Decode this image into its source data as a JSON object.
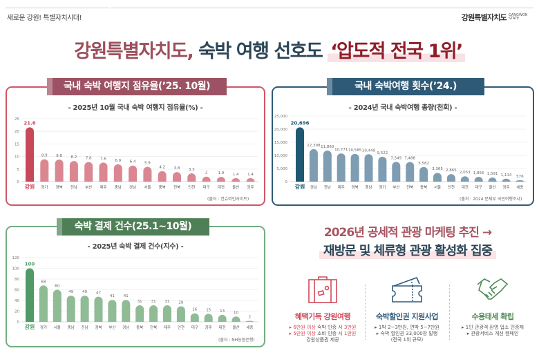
{
  "header": {
    "slogan": "새로운 강원! 특별자치시대!",
    "logo_text": "강원특별자치도",
    "logo_en": "GANGWON STATE"
  },
  "title": {
    "part1": "강원특별자치도,",
    "part2": "숙박 여행 선호도",
    "part3": "‘압도적 전국 1위’"
  },
  "panels": [
    {
      "tab": "국내 숙박 여행지 점유율(’25. 10월)",
      "subtitle": "- 2025년 10월 국내 숙박 여행지 점유율(%) -",
      "source": "(출처 : 컨슈머인사이트)"
    },
    {
      "tab": "국내 숙박여행 횟수(’24.)",
      "subtitle": "- 2024년 국내 숙박여행 총량(천회) -",
      "source": "(출처 : 2024 문체부 국민여행조사)"
    },
    {
      "tab": "숙박 결제 건수(25.1~10월)",
      "subtitle": "- 2025년 숙박 결제 건수(지수) -",
      "source": "(출처 : NH농협은행)"
    }
  ],
  "chart_data": [
    {
      "type": "bar",
      "title": "2025년 10월 국내 숙박 여행지 점유율(%)",
      "categories": [
        "강원",
        "경기",
        "경북",
        "전남",
        "부산",
        "제주",
        "충남",
        "경남",
        "서울",
        "충북",
        "전북",
        "인천",
        "대구",
        "대전",
        "울산",
        "광주"
      ],
      "values": [
        21.6,
        8.9,
        8.8,
        8.2,
        7.8,
        7.6,
        6.9,
        6.4,
        5.9,
        4.2,
        3.8,
        3.3,
        2,
        1.9,
        1.4,
        1.4
      ],
      "value_labels": [
        "21.6",
        "8.9",
        "8.8",
        "8.2",
        "7.8",
        "7.6",
        "6.9",
        "6.4",
        "5.9",
        "4.2",
        "3.8",
        "3.3",
        "2",
        "1.9",
        "1.4",
        "1.4"
      ],
      "ylim": [
        0,
        25
      ],
      "yticks": [
        "0",
        "5",
        "10",
        "15",
        "20",
        "25"
      ],
      "grid": true,
      "colors": {
        "highlight": "#c8485a",
        "bar": "#da8791"
      }
    },
    {
      "type": "bar",
      "title": "2024년 국내 숙박여행 총량(천회)",
      "categories": [
        "강원",
        "경남",
        "전남",
        "제주",
        "경북",
        "충남",
        "경기",
        "부산",
        "전북",
        "충북",
        "서울",
        "인천",
        "대전",
        "대구",
        "울산",
        "광주",
        "세종"
      ],
      "values": [
        20696,
        12398,
        11860,
        10771,
        10585,
        10449,
        9522,
        7549,
        7488,
        5582,
        3365,
        2865,
        2053,
        1856,
        1591,
        1114,
        576
      ],
      "value_labels": [
        "20,696",
        "12,398",
        "11,860",
        "10,771",
        "10,585",
        "10,449",
        "9,522",
        "7,549",
        "7,488",
        "5,582",
        "3,365",
        "2,865",
        "2,053",
        "1,856",
        "1,591",
        "1,114",
        "576"
      ],
      "ylim": [
        0,
        25000
      ],
      "yticks": [
        "0",
        "5,000",
        "10,000",
        "15,000",
        "20,000",
        "25,000"
      ],
      "grid": true,
      "colors": {
        "highlight": "#1f5872",
        "bar": "#7e9db3"
      }
    },
    {
      "type": "bar",
      "title": "2025년 숙박 결제 건수(지수)",
      "categories": [
        "강원",
        "경기",
        "서울",
        "충남",
        "전남",
        "경북",
        "부산",
        "경남",
        "충북",
        "전북",
        "제주",
        "인천",
        "대구",
        "광주",
        "대전",
        "울산",
        "세종"
      ],
      "values": [
        100,
        68,
        60,
        49,
        49,
        47,
        41,
        41,
        31,
        31,
        31,
        29,
        16,
        15,
        13,
        10,
        2
      ],
      "value_labels": [
        "100",
        "68",
        "60",
        "49",
        "49",
        "47",
        "41",
        "41",
        "31",
        "31",
        "31",
        "29",
        "16",
        "15",
        "13",
        "10",
        "2"
      ],
      "ylim": [
        0,
        120
      ],
      "yticks": [
        "0",
        "20",
        "40",
        "60",
        "80",
        "100",
        "120"
      ],
      "grid": true,
      "colors": {
        "highlight": "#4f9a67",
        "bar": "#8fbb95"
      }
    }
  ],
  "plan": {
    "line1": "2026년 공세적 관광 마케팅 추진 →",
    "line2": "재방문 및 체류형 관광 활성화 집중",
    "items": [
      {
        "icon": "suitcase-icon",
        "title": "혜택기득 강원여행",
        "lines": [
          [
            "▸ ",
            "6만원 이상",
            " 숙박 인증 시 ",
            "3만원"
          ],
          [
            "▸ ",
            "5만원 이상",
            " 소비 인증 시 ",
            "1만원"
          ]
        ],
        "extra": "강원상품권 제공",
        "color": "#d04a58"
      },
      {
        "icon": "ticket-icon",
        "title": "숙박할인권 지원사업",
        "lines": [
          "▸ 1박 2~3만원, 연박 5~7만원",
          "▸ 숙박 할인권 33,000장 발행",
          "(전국 1위 규모)"
        ],
        "color": "#2f5c7c"
      },
      {
        "icon": "handshake-icon",
        "title": "수용태세 확립",
        "lines": [
          "▸ 1인 관광객 환영 업소 인증제",
          "▸ 관광서비스 개선 캠페인"
        ],
        "color": "#4d8a55"
      }
    ]
  }
}
